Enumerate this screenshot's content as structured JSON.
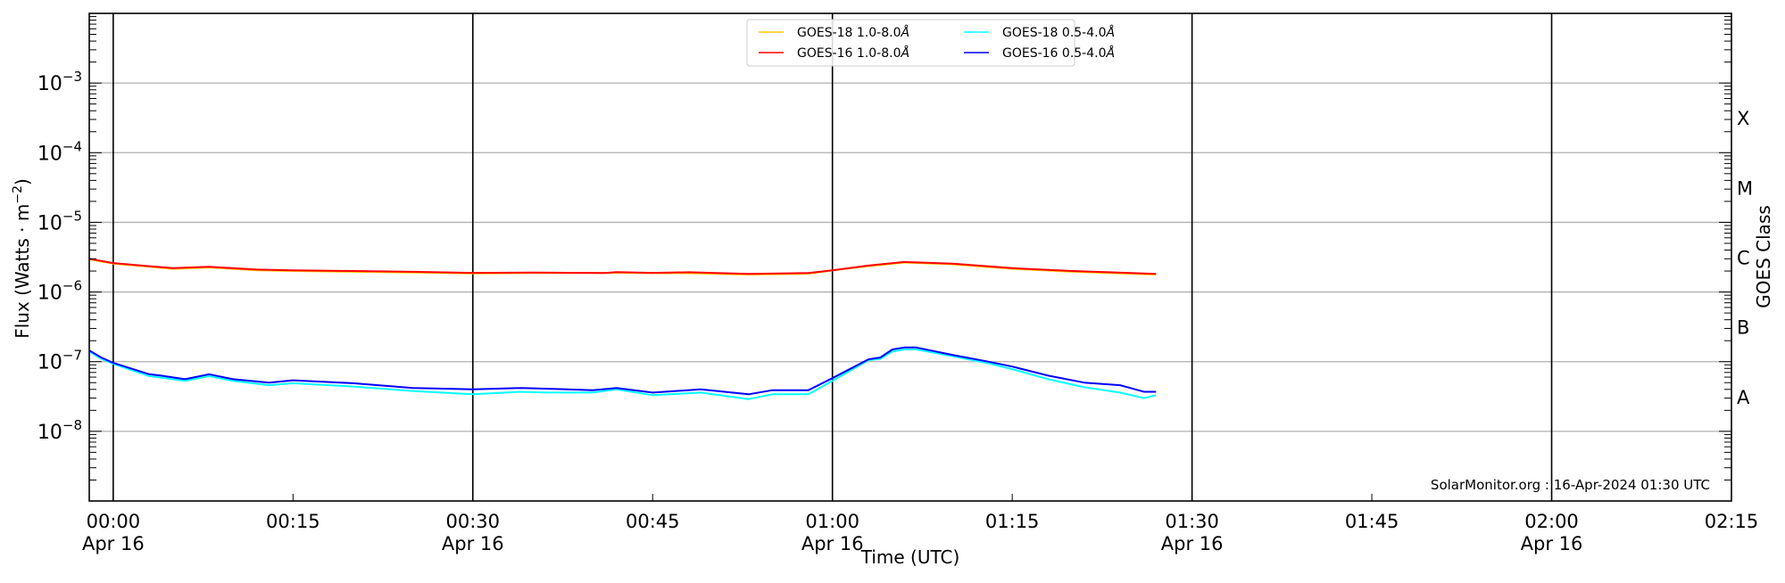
{
  "chart_data": {
    "type": "line",
    "title": "",
    "xlabel": "Time (UTC)",
    "ylabel": "Flux (Watts · m",
    "ylabel_exponent": "−2",
    "ylabel_close": ")",
    "y2label": "GOES Class",
    "yscale": "log",
    "ylim": [
      1e-09,
      0.01
    ],
    "xlim": [
      "23:58",
      "02:15"
    ],
    "grid": true,
    "legend_placement": "top-center",
    "watermark": "SolarMonitor.org : 16-Apr-2024 01:30 UTC",
    "y_ticks": [
      {
        "value": 0.001,
        "base": "10",
        "exp": "−3"
      },
      {
        "value": 0.0001,
        "base": "10",
        "exp": "−4"
      },
      {
        "value": 1e-05,
        "base": "10",
        "exp": "−5"
      },
      {
        "value": 1e-06,
        "base": "10",
        "exp": "−6"
      },
      {
        "value": 1e-07,
        "base": "10",
        "exp": "−7"
      },
      {
        "value": 1e-08,
        "base": "10",
        "exp": "−8"
      }
    ],
    "class_labels": [
      {
        "label": "X",
        "value": 0.000316
      },
      {
        "label": "M",
        "value": 3.16e-05
      },
      {
        "label": "C",
        "value": 3.16e-06
      },
      {
        "label": "B",
        "value": 3.16e-07
      },
      {
        "label": "A",
        "value": 3.16e-08
      }
    ],
    "x_ticks": [
      {
        "time": "00:00",
        "label": "00:00",
        "sub": "Apr 16"
      },
      {
        "time": "00:15",
        "label": "00:15",
        "sub": ""
      },
      {
        "time": "00:30",
        "label": "00:30",
        "sub": "Apr 16"
      },
      {
        "time": "00:45",
        "label": "00:45",
        "sub": ""
      },
      {
        "time": "01:00",
        "label": "01:00",
        "sub": "Apr 16"
      },
      {
        "time": "01:15",
        "label": "01:15",
        "sub": ""
      },
      {
        "time": "01:30",
        "label": "01:30",
        "sub": "Apr 16"
      },
      {
        "time": "01:45",
        "label": "01:45",
        "sub": ""
      },
      {
        "time": "02:00",
        "label": "02:00",
        "sub": "Apr 16"
      },
      {
        "time": "02:15",
        "label": "02:15",
        "sub": ""
      }
    ],
    "day_lines": [
      "00:00",
      "00:30",
      "01:00",
      "01:30",
      "02:00"
    ],
    "series": [
      {
        "name": "GOES-18 1.0-8.0Å",
        "legend_text": "GOES-18 1.0-8.0",
        "color": "#ffc800",
        "x": [
          "23:58",
          "00:00",
          "00:03",
          "00:05",
          "00:08",
          "00:12",
          "00:15",
          "00:20",
          "00:25",
          "00:30",
          "00:35",
          "00:42",
          "00:48",
          "00:53",
          "00:58",
          "01:00",
          "01:03",
          "01:06",
          "01:10",
          "01:15",
          "01:20",
          "01:27"
        ],
        "y": [
          2.95e-06,
          2.55e-06,
          2.3e-06,
          2.15e-06,
          2.25e-06,
          2.05e-06,
          2e-06,
          1.95e-06,
          1.9e-06,
          1.85e-06,
          1.87e-06,
          1.88e-06,
          1.86e-06,
          1.78e-06,
          1.83e-06,
          2.05e-06,
          2.35e-06,
          2.65e-06,
          2.5e-06,
          2.15e-06,
          1.95e-06,
          1.78e-06
        ]
      },
      {
        "name": "GOES-16 1.0-8.0Å",
        "legend_text": "GOES-16 1.0-8.0",
        "color": "#ff0000",
        "x": [
          "23:58",
          "00:00",
          "00:03",
          "00:05",
          "00:08",
          "00:12",
          "00:15",
          "00:20",
          "00:25",
          "00:30",
          "00:35",
          "00:41",
          "00:42",
          "00:45",
          "00:48",
          "00:53",
          "00:58",
          "01:00",
          "01:03",
          "01:06",
          "01:10",
          "01:15",
          "01:20",
          "01:27"
        ],
        "y": [
          3e-06,
          2.6e-06,
          2.35e-06,
          2.2e-06,
          2.3e-06,
          2.1e-06,
          2.05e-06,
          2e-06,
          1.95e-06,
          1.88e-06,
          1.9e-06,
          1.87e-06,
          1.93e-06,
          1.88e-06,
          1.92e-06,
          1.82e-06,
          1.87e-06,
          2.05e-06,
          2.4e-06,
          2.7e-06,
          2.55e-06,
          2.2e-06,
          2e-06,
          1.82e-06
        ]
      },
      {
        "name": "GOES-18 0.5-4.0Å",
        "legend_text": "GOES-18 0.5-4.0",
        "color": "#00ffff",
        "x": [
          "23:58",
          "23:59",
          "00:00",
          "00:03",
          "00:04",
          "00:06",
          "00:08",
          "00:10",
          "00:13",
          "00:15",
          "00:20",
          "00:25",
          "00:30",
          "00:34",
          "00:36",
          "00:40",
          "00:42",
          "00:45",
          "00:49",
          "00:53",
          "00:55",
          "00:58",
          "01:00",
          "01:03",
          "01:04",
          "01:05",
          "01:06",
          "01:07",
          "01:10",
          "01:13",
          "01:15",
          "01:18",
          "01:21",
          "01:24",
          "01:26",
          "01:27"
        ],
        "y": [
          1.4e-07,
          1.1e-07,
          9.3e-08,
          6.2e-08,
          5.9e-08,
          5.3e-08,
          6.2e-08,
          5.3e-08,
          4.6e-08,
          4.9e-08,
          4.4e-08,
          3.8e-08,
          3.4e-08,
          3.7e-08,
          3.6e-08,
          3.6e-08,
          4e-08,
          3.3e-08,
          3.6e-08,
          2.9e-08,
          3.4e-08,
          3.4e-08,
          5.3e-08,
          1.05e-07,
          1.1e-07,
          1.4e-07,
          1.5e-07,
          1.5e-07,
          1.2e-07,
          9.5e-08,
          7.8e-08,
          5.6e-08,
          4.3e-08,
          3.6e-08,
          3e-08,
          3.3e-08
        ]
      },
      {
        "name": "GOES-16 0.5-4.0Å",
        "legend_text": "GOES-16 0.5-4.0",
        "color": "#0000ff",
        "x": [
          "23:58",
          "23:59",
          "00:00",
          "00:03",
          "00:04",
          "00:06",
          "00:08",
          "00:10",
          "00:13",
          "00:15",
          "00:20",
          "00:25",
          "00:30",
          "00:34",
          "00:36",
          "00:40",
          "00:42",
          "00:45",
          "00:49",
          "00:53",
          "00:55",
          "00:58",
          "01:00",
          "01:03",
          "01:04",
          "01:05",
          "01:06",
          "01:07",
          "01:10",
          "01:13",
          "01:15",
          "01:18",
          "01:21",
          "01:24",
          "01:26",
          "01:27"
        ],
        "y": [
          1.45e-07,
          1.15e-07,
          9.6e-08,
          6.6e-08,
          6.3e-08,
          5.6e-08,
          6.6e-08,
          5.6e-08,
          5e-08,
          5.4e-08,
          4.9e-08,
          4.2e-08,
          4e-08,
          4.2e-08,
          4.1e-08,
          3.9e-08,
          4.2e-08,
          3.6e-08,
          4e-08,
          3.4e-08,
          3.9e-08,
          3.9e-08,
          5.8e-08,
          1.08e-07,
          1.15e-07,
          1.5e-07,
          1.6e-07,
          1.6e-07,
          1.25e-07,
          1e-07,
          8.5e-08,
          6.3e-08,
          5e-08,
          4.6e-08,
          3.7e-08,
          3.7e-08
        ]
      }
    ]
  }
}
